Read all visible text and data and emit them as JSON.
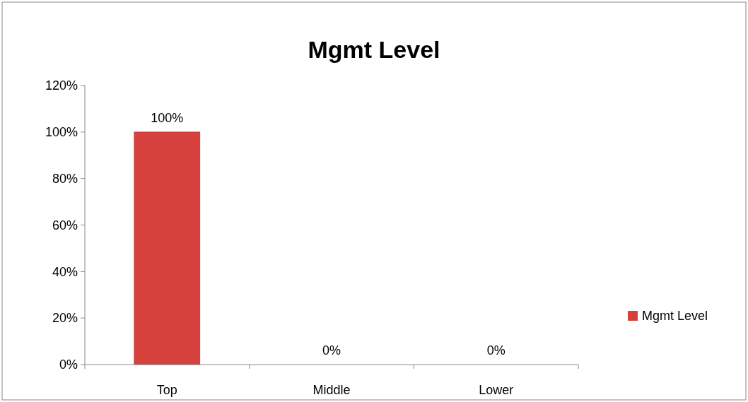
{
  "chart_data": {
    "type": "bar",
    "title": "Mgmt Level",
    "categories": [
      "Top",
      "Middle",
      "Lower"
    ],
    "series": [
      {
        "name": "Mgmt Level",
        "color": "#d6403d",
        "values": [
          100,
          0,
          0
        ]
      }
    ],
    "ylim": [
      0,
      120
    ],
    "yticks": [
      {
        "value": 0,
        "label": "0%"
      },
      {
        "value": 20,
        "label": "20%"
      },
      {
        "value": 40,
        "label": "40%"
      },
      {
        "value": 60,
        "label": "60%"
      },
      {
        "value": 80,
        "label": "80%"
      },
      {
        "value": 100,
        "label": "100%"
      },
      {
        "value": 120,
        "label": "120%"
      }
    ],
    "value_labels": [
      "100%",
      "0%",
      "0%"
    ],
    "grid": false,
    "legend": "right"
  }
}
